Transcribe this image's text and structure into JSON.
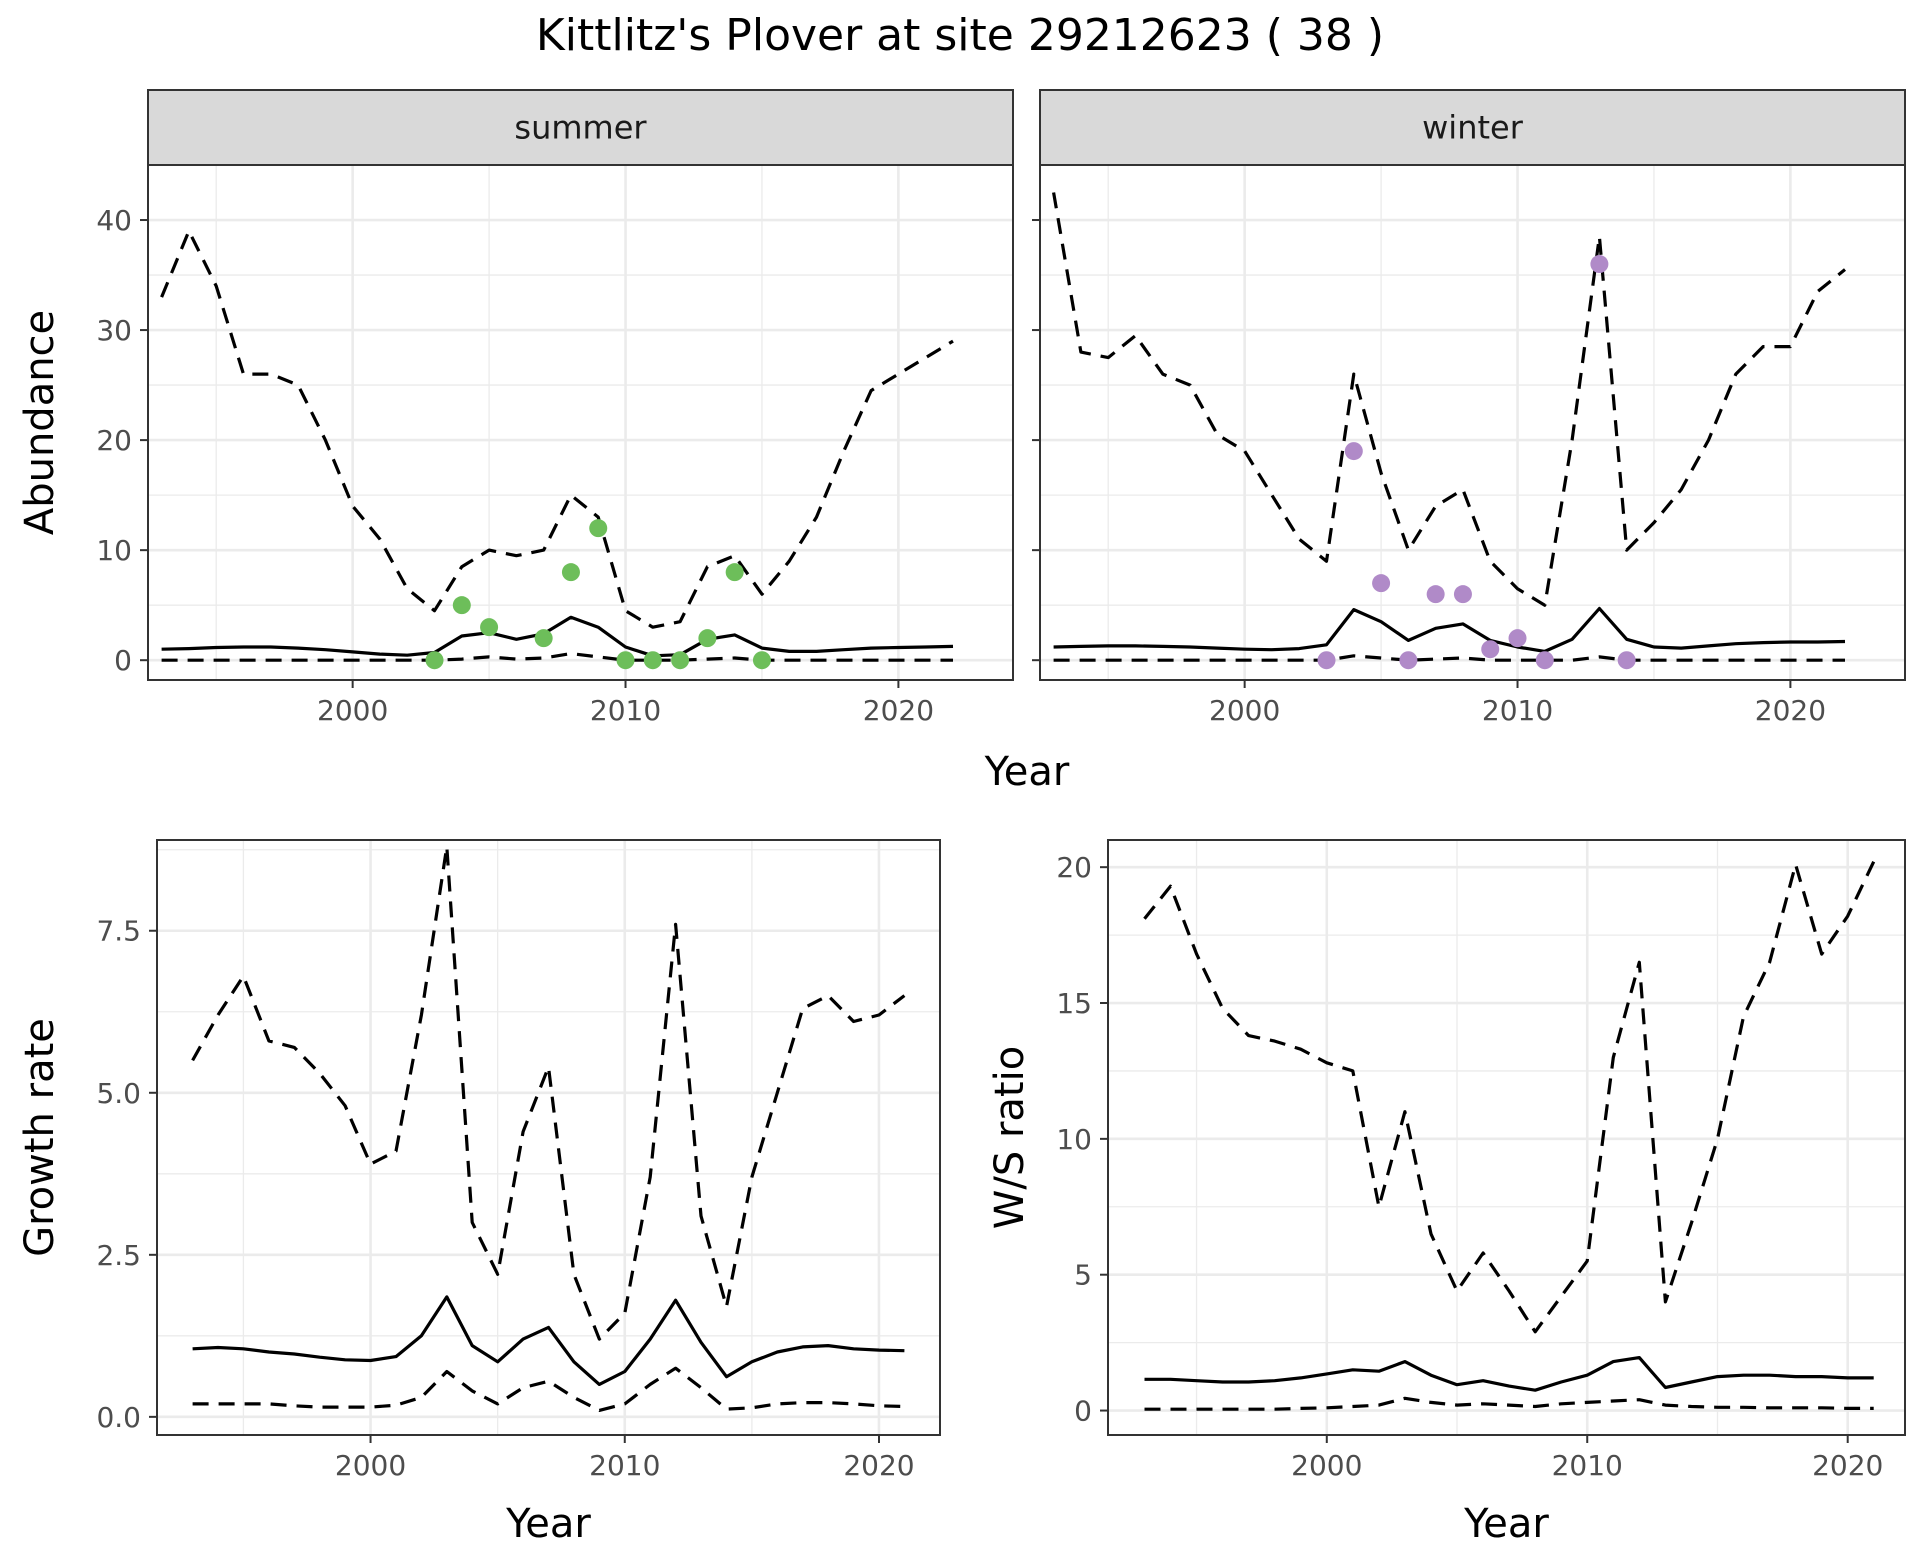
{
  "page": {
    "title": "Kittlitz's Plover at site 29212623 ( 38 )"
  },
  "colors": {
    "summer_points": "#6dbe5a",
    "winter_points": "#b08ac8",
    "line": "#000000",
    "strip_bg": "#d9d9d9",
    "grid": "#ebebeb"
  },
  "chart_data": [
    {
      "type": "line",
      "panel": "abundance-summer",
      "strip": "summer",
      "ylabel": "Abundance",
      "xlabel": "Year",
      "xlim": [
        1992.5,
        2024.2
      ],
      "ylim": [
        -1.8,
        45
      ],
      "xticks": [
        2000,
        2010,
        2020
      ],
      "yticks": [
        0,
        10,
        20,
        30,
        40
      ],
      "series": [
        {
          "role": "upper",
          "style": "dashed",
          "x": [
            1993,
            1994,
            1995,
            1996,
            1997,
            1998,
            1999,
            2000,
            2001,
            2002,
            2003,
            2004,
            2005,
            2006,
            2007,
            2008,
            2009,
            2010,
            2011,
            2012,
            2013,
            2014,
            2015,
            2016,
            2017,
            2018,
            2019,
            2020,
            2021,
            2022
          ],
          "y": [
            33,
            39,
            34,
            26,
            26,
            25,
            20,
            14,
            11,
            6.5,
            4.5,
            8.5,
            10,
            9.5,
            10,
            15,
            13,
            4.5,
            3,
            3.5,
            8.5,
            9.5,
            6,
            9,
            13,
            19,
            24.5,
            26,
            27.5,
            29
          ]
        },
        {
          "role": "mean",
          "style": "solid",
          "x": [
            1993,
            1994,
            1995,
            1996,
            1997,
            1998,
            1999,
            2000,
            2001,
            2002,
            2003,
            2004,
            2005,
            2006,
            2007,
            2008,
            2009,
            2010,
            2011,
            2012,
            2013,
            2014,
            2015,
            2016,
            2017,
            2018,
            2019,
            2020,
            2021,
            2022
          ],
          "y": [
            1,
            1.05,
            1.15,
            1.2,
            1.2,
            1.1,
            0.95,
            0.75,
            0.55,
            0.45,
            0.7,
            2.2,
            2.5,
            1.9,
            2.4,
            3.9,
            3,
            1.2,
            0.4,
            0.5,
            1.9,
            2.3,
            1.1,
            0.8,
            0.8,
            0.95,
            1.1,
            1.15,
            1.2,
            1.25
          ]
        },
        {
          "role": "lower",
          "style": "dashed",
          "x": [
            1993,
            1994,
            1995,
            1996,
            1997,
            1998,
            1999,
            2000,
            2001,
            2002,
            2003,
            2004,
            2005,
            2006,
            2007,
            2008,
            2009,
            2010,
            2011,
            2012,
            2013,
            2014,
            2015,
            2016,
            2017,
            2018,
            2019,
            2020,
            2021,
            2022
          ],
          "y": [
            0,
            0,
            0,
            0,
            0,
            0,
            0,
            0,
            0,
            0,
            0,
            0.1,
            0.3,
            0.1,
            0.2,
            0.6,
            0.3,
            0,
            0,
            0,
            0.1,
            0.2,
            0,
            0,
            0,
            0,
            0,
            0,
            0,
            0
          ]
        }
      ],
      "points": {
        "x": [
          2003,
          2004,
          2005,
          2007,
          2008,
          2009,
          2010,
          2011,
          2012,
          2013,
          2014,
          2015
        ],
        "y": [
          0,
          5,
          3,
          2,
          8,
          12,
          0,
          0,
          0,
          2,
          8,
          0
        ]
      }
    },
    {
      "type": "line",
      "panel": "abundance-winter",
      "strip": "winter",
      "ylabel": "",
      "xlabel": "Year",
      "xlim": [
        1992.5,
        2024.2
      ],
      "ylim": [
        -1.8,
        45
      ],
      "xticks": [
        2000,
        2010,
        2020
      ],
      "yticks": [
        0,
        10,
        20,
        30,
        40
      ],
      "series": [
        {
          "role": "upper",
          "style": "dashed",
          "x": [
            1993,
            1994,
            1995,
            1996,
            1997,
            1998,
            1999,
            2000,
            2001,
            2002,
            2003,
            2004,
            2005,
            2006,
            2007,
            2008,
            2009,
            2010,
            2011,
            2012,
            2013,
            2014,
            2015,
            2016,
            2017,
            2018,
            2019,
            2020,
            2021,
            2022
          ],
          "y": [
            42.5,
            28,
            27.5,
            29.5,
            26,
            25,
            20.5,
            19,
            15,
            11,
            9,
            26,
            17,
            10,
            14,
            15.5,
            9,
            6.5,
            5,
            20,
            38.5,
            10,
            12.5,
            15.5,
            20,
            26,
            28.5,
            28.5,
            33.5,
            35.5
          ]
        },
        {
          "role": "mean",
          "style": "solid",
          "x": [
            1993,
            1994,
            1995,
            1996,
            1997,
            1998,
            1999,
            2000,
            2001,
            2002,
            2003,
            2004,
            2005,
            2006,
            2007,
            2008,
            2009,
            2010,
            2011,
            2012,
            2013,
            2014,
            2015,
            2016,
            2017,
            2018,
            2019,
            2020,
            2021,
            2022
          ],
          "y": [
            1.2,
            1.25,
            1.3,
            1.3,
            1.25,
            1.2,
            1.1,
            1,
            0.95,
            1.05,
            1.4,
            4.6,
            3.5,
            1.8,
            2.9,
            3.3,
            1.8,
            1.2,
            0.8,
            1.9,
            4.7,
            1.9,
            1.2,
            1.1,
            1.3,
            1.5,
            1.6,
            1.65,
            1.65,
            1.7
          ]
        },
        {
          "role": "lower",
          "style": "dashed",
          "x": [
            1993,
            1994,
            1995,
            1996,
            1997,
            1998,
            1999,
            2000,
            2001,
            2002,
            2003,
            2004,
            2005,
            2006,
            2007,
            2008,
            2009,
            2010,
            2011,
            2012,
            2013,
            2014,
            2015,
            2016,
            2017,
            2018,
            2019,
            2020,
            2021,
            2022
          ],
          "y": [
            0,
            0,
            0,
            0,
            0,
            0,
            0,
            0,
            0,
            0,
            0,
            0.4,
            0.2,
            0,
            0.1,
            0.2,
            0,
            0,
            0,
            0,
            0.3,
            0,
            0,
            0,
            0,
            0,
            0,
            0,
            0,
            0
          ]
        }
      ],
      "points": {
        "x": [
          2003,
          2004,
          2005,
          2006,
          2007,
          2008,
          2009,
          2010,
          2011,
          2013,
          2014
        ],
        "y": [
          0,
          19,
          7,
          0,
          6,
          6,
          1,
          2,
          0,
          36,
          0
        ]
      }
    },
    {
      "type": "line",
      "panel": "growth-rate",
      "ylabel": "Growth rate",
      "xlabel": "Year",
      "xlim": [
        1991.6,
        2022.4
      ],
      "ylim": [
        -0.28,
        8.9
      ],
      "xticks": [
        2000,
        2010,
        2020
      ],
      "yticks": [
        0.0,
        2.5,
        5.0,
        7.5
      ],
      "ytick_labels": [
        "0.0",
        "2.5",
        "5.0",
        "7.5"
      ],
      "series": [
        {
          "role": "upper",
          "style": "dashed",
          "x": [
            1993,
            1994,
            1995,
            1996,
            1997,
            1998,
            1999,
            2000,
            2001,
            2002,
            2003,
            2004,
            2005,
            2006,
            2007,
            2008,
            2009,
            2010,
            2011,
            2012,
            2013,
            2014,
            2015,
            2016,
            2017,
            2018,
            2019,
            2020,
            2021
          ],
          "y": [
            5.5,
            6.2,
            6.8,
            5.8,
            5.7,
            5.3,
            4.8,
            3.9,
            4.1,
            6.2,
            8.8,
            3,
            2.2,
            4.4,
            5.4,
            2.2,
            1.2,
            1.6,
            3.7,
            7.6,
            3.1,
            1.7,
            3.7,
            5,
            6.3,
            6.5,
            6.1,
            6.2,
            6.5
          ]
        },
        {
          "role": "mean",
          "style": "solid",
          "x": [
            1993,
            1994,
            1995,
            1996,
            1997,
            1998,
            1999,
            2000,
            2001,
            2002,
            2003,
            2004,
            2005,
            2006,
            2007,
            2008,
            2009,
            2010,
            2011,
            2012,
            2013,
            2014,
            2015,
            2016,
            2017,
            2018,
            2019,
            2020,
            2021
          ],
          "y": [
            1.05,
            1.07,
            1.05,
            1,
            0.97,
            0.92,
            0.88,
            0.87,
            0.93,
            1.25,
            1.85,
            1.1,
            0.85,
            1.2,
            1.38,
            0.85,
            0.5,
            0.7,
            1.2,
            1.8,
            1.15,
            0.62,
            0.85,
            1.0,
            1.08,
            1.1,
            1.05,
            1.03,
            1.02
          ]
        },
        {
          "role": "lower",
          "style": "dashed",
          "x": [
            1993,
            1994,
            1995,
            1996,
            1997,
            1998,
            1999,
            2000,
            2001,
            2002,
            2003,
            2004,
            2005,
            2006,
            2007,
            2008,
            2009,
            2010,
            2011,
            2012,
            2013,
            2014,
            2015,
            2016,
            2017,
            2018,
            2019,
            2020,
            2021
          ],
          "y": [
            0.2,
            0.2,
            0.2,
            0.2,
            0.17,
            0.15,
            0.15,
            0.15,
            0.18,
            0.3,
            0.7,
            0.4,
            0.2,
            0.45,
            0.55,
            0.3,
            0.1,
            0.2,
            0.5,
            0.75,
            0.45,
            0.12,
            0.14,
            0.2,
            0.22,
            0.22,
            0.2,
            0.17,
            0.16
          ]
        }
      ]
    },
    {
      "type": "line",
      "panel": "ws-ratio",
      "ylabel": "W/S ratio",
      "xlabel": "Year",
      "xlim": [
        1991.6,
        2022.2
      ],
      "ylim": [
        -0.9,
        21
      ],
      "xticks": [
        2000,
        2010,
        2020
      ],
      "yticks": [
        0,
        5,
        10,
        15,
        20
      ],
      "series": [
        {
          "role": "upper",
          "style": "dashed",
          "x": [
            1993,
            1994,
            1995,
            1996,
            1997,
            1998,
            1999,
            2000,
            2001,
            2002,
            2003,
            2004,
            2005,
            2006,
            2007,
            2008,
            2009,
            2010,
            2011,
            2012,
            2013,
            2014,
            2015,
            2016,
            2017,
            2018,
            2019,
            2020,
            2021
          ],
          "y": [
            18.1,
            19.3,
            16.8,
            14.8,
            13.8,
            13.6,
            13.3,
            12.8,
            12.5,
            7.5,
            11,
            6.5,
            4.4,
            5.8,
            4.4,
            2.9,
            4.2,
            5.5,
            13,
            16.5,
            4,
            6.9,
            10,
            14.5,
            16.5,
            20.1,
            16.8,
            18.2,
            20.2
          ]
        },
        {
          "role": "mean",
          "style": "solid",
          "x": [
            1993,
            1994,
            1995,
            1996,
            1997,
            1998,
            1999,
            2000,
            2001,
            2002,
            2003,
            2004,
            2005,
            2006,
            2007,
            2008,
            2009,
            2010,
            2011,
            2012,
            2013,
            2014,
            2015,
            2016,
            2017,
            2018,
            2019,
            2020,
            2021
          ],
          "y": [
            1.15,
            1.15,
            1.1,
            1.05,
            1.05,
            1.1,
            1.2,
            1.35,
            1.5,
            1.45,
            1.8,
            1.3,
            0.95,
            1.1,
            0.9,
            0.75,
            1.05,
            1.3,
            1.8,
            1.95,
            0.85,
            1.05,
            1.25,
            1.3,
            1.3,
            1.25,
            1.25,
            1.2,
            1.2
          ]
        },
        {
          "role": "lower",
          "style": "dashed",
          "x": [
            1993,
            1994,
            1995,
            1996,
            1997,
            1998,
            1999,
            2000,
            2001,
            2002,
            2003,
            2004,
            2005,
            2006,
            2007,
            2008,
            2009,
            2010,
            2011,
            2012,
            2013,
            2014,
            2015,
            2016,
            2017,
            2018,
            2019,
            2020,
            2021
          ],
          "y": [
            0.05,
            0.05,
            0.05,
            0.05,
            0.05,
            0.05,
            0.08,
            0.1,
            0.15,
            0.2,
            0.45,
            0.3,
            0.2,
            0.25,
            0.2,
            0.15,
            0.25,
            0.3,
            0.35,
            0.4,
            0.2,
            0.15,
            0.12,
            0.12,
            0.1,
            0.1,
            0.1,
            0.08,
            0.08
          ]
        }
      ]
    }
  ]
}
